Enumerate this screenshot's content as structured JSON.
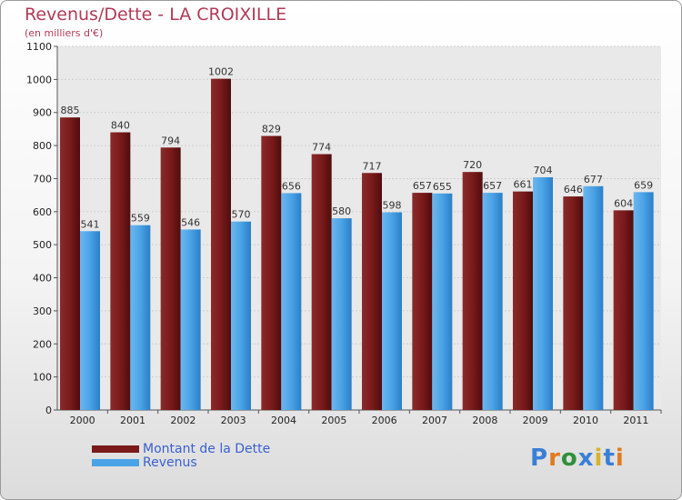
{
  "colors": {
    "dette": "#7a1a1a",
    "revenus": "#4aa3e6",
    "title": "#b03a55",
    "legend_text": "#3a5fd0"
  },
  "logo": {
    "text": "Proxiti",
    "letter_colors": [
      "#3a7fd6",
      "#e07a20",
      "#2f8f3a",
      "#3a7fd6",
      "#d8b32a",
      "#3a7fd6",
      "#e07a20"
    ]
  },
  "chart_data": {
    "type": "bar",
    "title": "Revenus/Dette - LA CROIXILLE",
    "subtitle": "(en milliers d'€)",
    "xlabel": "",
    "ylabel": "",
    "categories": [
      "2000",
      "2001",
      "2002",
      "2003",
      "2004",
      "2005",
      "2006",
      "2007",
      "2008",
      "2009",
      "2010",
      "2011"
    ],
    "series": [
      {
        "name": "Montant de la Dette",
        "values": [
          885,
          840,
          794,
          1002,
          829,
          774,
          717,
          657,
          720,
          661,
          646,
          604
        ]
      },
      {
        "name": "Revenus",
        "values": [
          541,
          559,
          546,
          570,
          656,
          580,
          598,
          655,
          657,
          704,
          677,
          659
        ]
      }
    ],
    "ylim": [
      0,
      1100
    ],
    "yticks": [
      0,
      100,
      200,
      300,
      400,
      500,
      600,
      700,
      800,
      900,
      1000,
      1100
    ],
    "grid": true,
    "legend": "bottom-left"
  }
}
